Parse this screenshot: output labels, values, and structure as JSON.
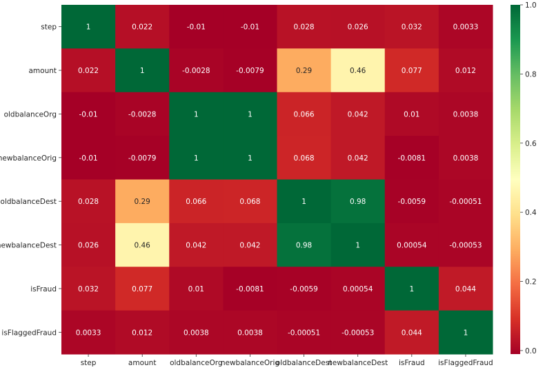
{
  "chart_data": {
    "type": "heatmap",
    "title": "",
    "labels": [
      "step",
      "amount",
      "oldbalanceOrg",
      "newbalanceOrig",
      "oldbalanceDest",
      "newbalanceDest",
      "isFraud",
      "isFlaggedFraud"
    ],
    "values": [
      [
        1,
        0.022,
        -0.01,
        -0.01,
        0.028,
        0.026,
        0.032,
        0.0033
      ],
      [
        0.022,
        1,
        -0.0028,
        -0.0079,
        0.29,
        0.46,
        0.077,
        0.012
      ],
      [
        -0.01,
        -0.0028,
        1,
        1,
        0.066,
        0.042,
        0.01,
        0.0038
      ],
      [
        -0.01,
        -0.0079,
        1,
        1,
        0.068,
        0.042,
        -0.0081,
        0.0038
      ],
      [
        0.028,
        0.29,
        0.066,
        0.068,
        1,
        0.98,
        -0.0059,
        -0.00051
      ],
      [
        0.026,
        0.46,
        0.042,
        0.042,
        0.98,
        1,
        0.00054,
        -0.00053
      ],
      [
        0.032,
        0.077,
        0.01,
        -0.0081,
        -0.0059,
        0.00054,
        1,
        0.044
      ],
      [
        0.0033,
        0.012,
        0.0038,
        0.0038,
        -0.00051,
        -0.00053,
        0.044,
        1
      ]
    ],
    "colormap": "RdYlGn",
    "vmin": -0.0102,
    "vmax": 1.0,
    "colorbar_ticks": [
      "0.0",
      "0.2",
      "0.4",
      "0.6",
      "0.8",
      "1.0"
    ],
    "colorbar_tick_values": [
      0,
      0.2,
      0.4,
      0.6,
      0.8,
      1.0
    ],
    "annotations": true
  }
}
